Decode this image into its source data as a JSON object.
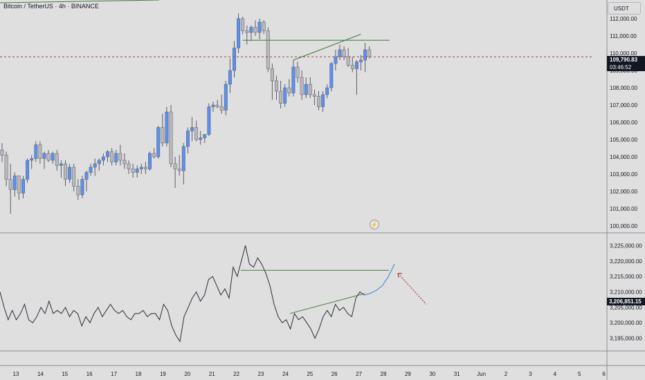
{
  "header": {
    "symbol_title": "Bitcoin / TetherUS · 4h · BINANCE",
    "currency_label": "USDT"
  },
  "price_scale": {
    "labels": [
      "112,000.00",
      "111,000.00",
      "110,000.00",
      "109,000.00",
      "108,000.00",
      "107,000.00",
      "106,000.00",
      "105,000.00",
      "104,000.00",
      "103,000.00",
      "102,000.00",
      "101,000.00",
      "100,000.00"
    ],
    "last_price": "109,790.83",
    "countdown": "03:46:52"
  },
  "oscillator_scale": {
    "labels": [
      "3,225,000.00",
      "3,220,000.00",
      "3,215,000.00",
      "3,210,000.00",
      "3,205,000.00",
      "3,200,000.00",
      "3,195,000.00"
    ],
    "last_value": "3,206,851.15"
  },
  "time_axis": {
    "labels": [
      "13",
      "14",
      "15",
      "16",
      "17",
      "18",
      "19",
      "20",
      "21",
      "22",
      "23",
      "24",
      "25",
      "26",
      "27",
      "28",
      "29",
      "30",
      "31",
      "Jun",
      "2",
      "3",
      "4",
      "5",
      "6"
    ]
  },
  "icons": {
    "flash": "lightning-icon"
  },
  "colors": {
    "background": "#dfdfdf",
    "up_candle": "#5b8ff0",
    "down_candle": "#b9b9bd",
    "wick": "#5a5d66",
    "trendline": "#3f7a3a",
    "oscillator_line": "#2a2e39",
    "projection": "#4e8fd6",
    "last_price_line": "#a33a3a"
  },
  "chart_data": [
    {
      "type": "candlestick",
      "title": "Bitcoin / TetherUS · 4h · BINANCE",
      "ylim": [
        99800,
        112600
      ],
      "ticks": [
        "13",
        "14",
        "15",
        "16",
        "17",
        "18",
        "19",
        "20",
        "21",
        "22",
        "23",
        "24",
        "25",
        "26",
        "27",
        "28",
        "29",
        "30",
        "31",
        "Jun",
        "2",
        "3",
        "4",
        "5",
        "6"
      ],
      "last_price": 109790.83,
      "resistance_level": 110750,
      "candles": [
        {
          "o": 104400,
          "h": 104800,
          "l": 103700,
          "c": 104100
        },
        {
          "o": 104100,
          "h": 104300,
          "l": 102300,
          "c": 102700
        },
        {
          "o": 102700,
          "h": 103600,
          "l": 100700,
          "c": 102100
        },
        {
          "o": 102100,
          "h": 103100,
          "l": 101700,
          "c": 102900
        },
        {
          "o": 102900,
          "h": 102900,
          "l": 101500,
          "c": 101900
        },
        {
          "o": 101900,
          "h": 102900,
          "l": 101600,
          "c": 102700
        },
        {
          "o": 102700,
          "h": 103900,
          "l": 102500,
          "c": 103800
        },
        {
          "o": 103800,
          "h": 104100,
          "l": 103300,
          "c": 103900
        },
        {
          "o": 103900,
          "h": 104900,
          "l": 103700,
          "c": 104700
        },
        {
          "o": 104700,
          "h": 104900,
          "l": 103600,
          "c": 103900
        },
        {
          "o": 103900,
          "h": 104300,
          "l": 103300,
          "c": 104200
        },
        {
          "o": 104200,
          "h": 104400,
          "l": 103700,
          "c": 103800
        },
        {
          "o": 103800,
          "h": 104300,
          "l": 103600,
          "c": 104200
        },
        {
          "o": 104200,
          "h": 104400,
          "l": 103200,
          "c": 103500
        },
        {
          "o": 103500,
          "h": 103800,
          "l": 102800,
          "c": 103600
        },
        {
          "o": 103600,
          "h": 103800,
          "l": 102300,
          "c": 102700
        },
        {
          "o": 102700,
          "h": 103600,
          "l": 102500,
          "c": 103400
        },
        {
          "o": 103400,
          "h": 103600,
          "l": 102000,
          "c": 102300
        },
        {
          "o": 102300,
          "h": 102700,
          "l": 101500,
          "c": 101800
        },
        {
          "o": 101800,
          "h": 102900,
          "l": 101600,
          "c": 102700
        },
        {
          "o": 102700,
          "h": 103200,
          "l": 102000,
          "c": 103100
        },
        {
          "o": 103100,
          "h": 103600,
          "l": 102900,
          "c": 103400
        },
        {
          "o": 103400,
          "h": 103900,
          "l": 102900,
          "c": 103600
        },
        {
          "o": 103600,
          "h": 103900,
          "l": 103200,
          "c": 103800
        },
        {
          "o": 103800,
          "h": 104200,
          "l": 103500,
          "c": 104000
        },
        {
          "o": 104000,
          "h": 104400,
          "l": 103700,
          "c": 104300
        },
        {
          "o": 104300,
          "h": 104500,
          "l": 103500,
          "c": 103700
        },
        {
          "o": 103700,
          "h": 104400,
          "l": 103500,
          "c": 104200
        },
        {
          "o": 104200,
          "h": 104700,
          "l": 103500,
          "c": 103800
        },
        {
          "o": 103800,
          "h": 104200,
          "l": 103300,
          "c": 103600
        },
        {
          "o": 103600,
          "h": 103800,
          "l": 103000,
          "c": 103300
        },
        {
          "o": 103300,
          "h": 103600,
          "l": 102800,
          "c": 103100
        },
        {
          "o": 103100,
          "h": 103500,
          "l": 102800,
          "c": 103300
        },
        {
          "o": 103300,
          "h": 103600,
          "l": 103000,
          "c": 103400
        },
        {
          "o": 103400,
          "h": 103700,
          "l": 103000,
          "c": 103300
        },
        {
          "o": 103300,
          "h": 104300,
          "l": 103200,
          "c": 104200
        },
        {
          "o": 104200,
          "h": 104500,
          "l": 103900,
          "c": 104000
        },
        {
          "o": 104000,
          "h": 105800,
          "l": 103900,
          "c": 105700
        },
        {
          "o": 105700,
          "h": 106500,
          "l": 104600,
          "c": 104800
        },
        {
          "o": 104800,
          "h": 106900,
          "l": 104600,
          "c": 106600
        },
        {
          "o": 106600,
          "h": 107000,
          "l": 103400,
          "c": 103600
        },
        {
          "o": 103600,
          "h": 104000,
          "l": 102200,
          "c": 103300
        },
        {
          "o": 103300,
          "h": 104100,
          "l": 102900,
          "c": 103200
        },
        {
          "o": 103200,
          "h": 104800,
          "l": 102400,
          "c": 104600
        },
        {
          "o": 104600,
          "h": 105700,
          "l": 104200,
          "c": 105500
        },
        {
          "o": 105500,
          "h": 106300,
          "l": 104900,
          "c": 105700
        },
        {
          "o": 105700,
          "h": 106100,
          "l": 104900,
          "c": 105000
        },
        {
          "o": 105000,
          "h": 105500,
          "l": 104700,
          "c": 105100
        },
        {
          "o": 105100,
          "h": 105300,
          "l": 104800,
          "c": 105300
        },
        {
          "o": 105300,
          "h": 107100,
          "l": 105200,
          "c": 106900
        },
        {
          "o": 106900,
          "h": 107200,
          "l": 106600,
          "c": 107000
        },
        {
          "o": 107000,
          "h": 107300,
          "l": 106800,
          "c": 106900
        },
        {
          "o": 106900,
          "h": 107600,
          "l": 106500,
          "c": 106700
        },
        {
          "o": 106700,
          "h": 108400,
          "l": 106400,
          "c": 108200
        },
        {
          "o": 108200,
          "h": 109700,
          "l": 107700,
          "c": 109000
        },
        {
          "o": 109000,
          "h": 110700,
          "l": 108600,
          "c": 110300
        },
        {
          "o": 110300,
          "h": 112300,
          "l": 110000,
          "c": 112000
        },
        {
          "o": 112000,
          "h": 112100,
          "l": 111100,
          "c": 111300
        },
        {
          "o": 111300,
          "h": 111600,
          "l": 110500,
          "c": 111200
        },
        {
          "o": 111200,
          "h": 111600,
          "l": 110700,
          "c": 111500
        },
        {
          "o": 111500,
          "h": 111900,
          "l": 111000,
          "c": 111200
        },
        {
          "o": 111200,
          "h": 112000,
          "l": 110800,
          "c": 111800
        },
        {
          "o": 111800,
          "h": 111900,
          "l": 111100,
          "c": 111300
        },
        {
          "o": 111300,
          "h": 111500,
          "l": 108900,
          "c": 109100
        },
        {
          "o": 109100,
          "h": 109400,
          "l": 107300,
          "c": 108400
        },
        {
          "o": 108400,
          "h": 108700,
          "l": 107300,
          "c": 107800
        },
        {
          "o": 107800,
          "h": 108400,
          "l": 106800,
          "c": 107100
        },
        {
          "o": 107100,
          "h": 108200,
          "l": 106900,
          "c": 108000
        },
        {
          "o": 108000,
          "h": 108500,
          "l": 107500,
          "c": 107700
        },
        {
          "o": 107700,
          "h": 109600,
          "l": 107500,
          "c": 109200
        },
        {
          "o": 109200,
          "h": 109500,
          "l": 108300,
          "c": 108600
        },
        {
          "o": 108600,
          "h": 109000,
          "l": 107300,
          "c": 107600
        },
        {
          "o": 107600,
          "h": 108600,
          "l": 107400,
          "c": 108200
        },
        {
          "o": 108200,
          "h": 108600,
          "l": 107400,
          "c": 107600
        },
        {
          "o": 107600,
          "h": 107900,
          "l": 107000,
          "c": 107500
        },
        {
          "o": 107500,
          "h": 107800,
          "l": 106700,
          "c": 106900
        },
        {
          "o": 106900,
          "h": 107800,
          "l": 106600,
          "c": 107600
        },
        {
          "o": 107600,
          "h": 108200,
          "l": 107400,
          "c": 108000
        },
        {
          "o": 108000,
          "h": 109500,
          "l": 107800,
          "c": 109400
        },
        {
          "o": 109400,
          "h": 110200,
          "l": 109000,
          "c": 109800
        },
        {
          "o": 109800,
          "h": 110500,
          "l": 109600,
          "c": 110200
        },
        {
          "o": 110200,
          "h": 110400,
          "l": 109600,
          "c": 109800
        },
        {
          "o": 109800,
          "h": 110300,
          "l": 109200,
          "c": 109300
        },
        {
          "o": 109300,
          "h": 109800,
          "l": 108900,
          "c": 109100
        },
        {
          "o": 109100,
          "h": 109600,
          "l": 107600,
          "c": 109500
        },
        {
          "o": 109500,
          "h": 109900,
          "l": 109000,
          "c": 109600
        },
        {
          "o": 109600,
          "h": 110600,
          "l": 108900,
          "c": 110200
        },
        {
          "o": 110200,
          "h": 110400,
          "l": 109700,
          "c": 109790
        }
      ]
    },
    {
      "type": "line",
      "ylim": [
        3192000,
        3228000
      ],
      "last_value": 3206851.15,
      "breakout_level": 3217000,
      "values": [
        3210000,
        3205000,
        3201000,
        3204000,
        3201000,
        3203000,
        3206000,
        3201000,
        3200000,
        3202000,
        3205000,
        3203000,
        3207000,
        3203000,
        3204000,
        3203000,
        3205000,
        3202000,
        3204000,
        3203000,
        3199000,
        3202000,
        3200000,
        3203000,
        3205000,
        3202000,
        3204000,
        3206000,
        3204000,
        3203000,
        3204000,
        3202000,
        3201000,
        3203000,
        3203000,
        3204000,
        3202000,
        3203000,
        3203000,
        3201000,
        3206000,
        3204000,
        3199000,
        3196000,
        3194000,
        3202000,
        3205000,
        3208000,
        3210000,
        3207000,
        3209000,
        3214000,
        3215000,
        3212000,
        3209000,
        3211000,
        3208000,
        3218000,
        3215000,
        3220000,
        3225000,
        3219000,
        3218000,
        3221000,
        3219000,
        3216000,
        3212000,
        3206000,
        3202000,
        3200000,
        3201000,
        3198000,
        3203000,
        3201000,
        3202000,
        3200000,
        3198000,
        3195000,
        3198000,
        3202000,
        3204000,
        3202000,
        3206000,
        3204000,
        3205000,
        3203000,
        3202000,
        3208000,
        3210000,
        3209000
      ],
      "projection": [
        3209000,
        3209500,
        3210500,
        3212000,
        3215000,
        3219000
      ]
    }
  ]
}
